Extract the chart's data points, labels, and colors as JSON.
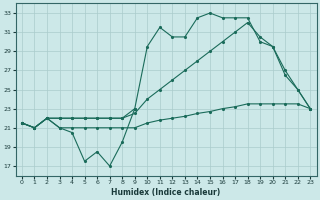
{
  "xlabel": "Humidex (Indice chaleur)",
  "bg_color": "#cce8e8",
  "grid_color": "#aacccc",
  "line_color": "#1a6b5a",
  "xlim": [
    -0.5,
    23.5
  ],
  "ylim": [
    16.0,
    34.0
  ],
  "yticks": [
    17,
    19,
    21,
    23,
    25,
    27,
    29,
    31,
    33
  ],
  "xticks": [
    0,
    1,
    2,
    3,
    4,
    5,
    6,
    7,
    8,
    9,
    10,
    11,
    12,
    13,
    14,
    15,
    16,
    17,
    18,
    19,
    20,
    21,
    22,
    23
  ],
  "line_jagged_x": [
    0,
    1,
    2,
    3,
    4,
    5,
    6,
    7,
    8,
    9
  ],
  "line_jagged_y": [
    21.5,
    21.0,
    22.0,
    21.0,
    20.5,
    17.5,
    18.5,
    17.0,
    19.5,
    23.0
  ],
  "line_low_x": [
    0,
    1,
    2,
    3,
    4,
    5,
    6,
    7,
    8,
    9,
    10,
    11,
    12,
    13,
    14,
    15,
    16,
    17,
    18,
    19,
    20,
    21,
    22,
    23
  ],
  "line_low_y": [
    21.5,
    21.0,
    22.0,
    21.0,
    21.0,
    21.0,
    21.0,
    21.0,
    21.0,
    21.0,
    21.5,
    21.8,
    22.0,
    22.2,
    22.5,
    22.7,
    23.0,
    23.2,
    23.5,
    23.5,
    23.5,
    23.5,
    23.5,
    23.0
  ],
  "line_mid_x": [
    0,
    1,
    2,
    3,
    4,
    5,
    6,
    7,
    8,
    9,
    10,
    11,
    12,
    13,
    14,
    15,
    16,
    17,
    18,
    19,
    20,
    21,
    22,
    23
  ],
  "line_mid_y": [
    21.5,
    21.0,
    22.0,
    22.0,
    22.0,
    22.0,
    22.0,
    22.0,
    22.0,
    22.5,
    24.0,
    25.0,
    26.0,
    27.0,
    28.0,
    29.0,
    30.0,
    31.0,
    32.0,
    30.5,
    29.5,
    27.0,
    25.0,
    23.0
  ],
  "line_top_x": [
    0,
    1,
    2,
    3,
    4,
    5,
    6,
    7,
    8,
    9,
    10,
    11,
    12,
    13,
    14,
    15,
    16,
    17,
    18,
    19,
    20,
    21,
    22,
    23
  ],
  "line_top_y": [
    21.5,
    21.0,
    22.0,
    22.0,
    22.0,
    22.0,
    22.0,
    22.0,
    22.0,
    23.0,
    29.5,
    31.5,
    30.5,
    30.5,
    32.5,
    33.0,
    32.5,
    32.5,
    32.5,
    30.0,
    29.5,
    26.5,
    25.0,
    23.0
  ]
}
